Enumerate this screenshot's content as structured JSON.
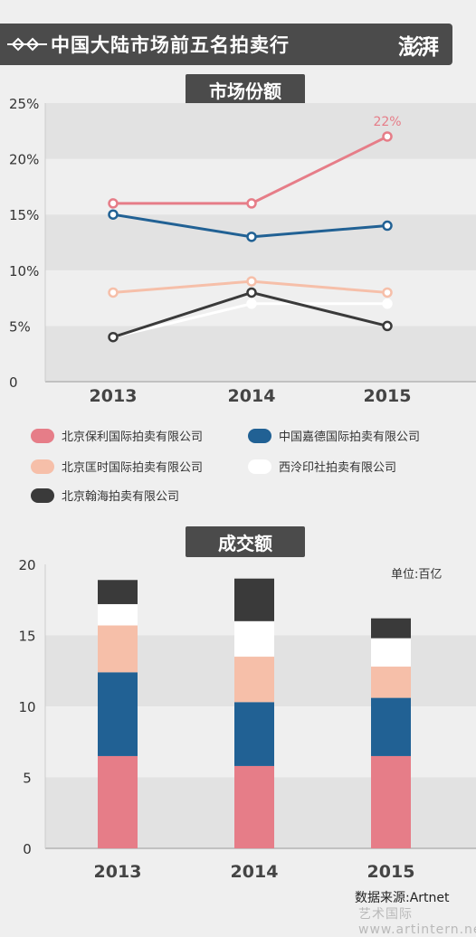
{
  "header": {
    "title": "中国大陆市场前五名拍卖行",
    "logo_text": "澎湃"
  },
  "sections": {
    "share_title": "市场份额",
    "turnover_title": "成交额"
  },
  "unit_label": "单位:百亿",
  "source_label": "数据来源:Artnet",
  "watermark_text": "艺术国际 www.artintern.net",
  "colors": {
    "poly": "#e67d88",
    "guardian": "#216194",
    "kuangshi": "#f6bfa9",
    "xiling": "#ffffff",
    "hanhai": "#3a3a3a",
    "background": "#efefef",
    "band": "#e2e2e2"
  },
  "legend": [
    {
      "label": "北京保利国际拍卖有限公司",
      "color": "#e67d88",
      "icon": "pill-swatch"
    },
    {
      "label": "中国嘉德国际拍卖有限公司",
      "color": "#216194",
      "icon": "pill-swatch"
    },
    {
      "label": "北京匡时国际拍卖有限公司",
      "color": "#f6bfa9",
      "icon": "pill-swatch"
    },
    {
      "label": "西泠印社拍卖有限公司",
      "color": "#ffffff",
      "icon": "pill-swatch"
    },
    {
      "label": "北京翰海拍卖有限公司",
      "color": "#3a3a3a",
      "icon": "pill-swatch"
    }
  ],
  "chart_data": [
    {
      "type": "line",
      "title": "市场份额",
      "x": [
        "2013",
        "2014",
        "2015"
      ],
      "ylim": [
        0,
        25
      ],
      "yticks": [
        "0",
        "5%",
        "10%",
        "15%",
        "20%",
        "25%"
      ],
      "grid": "alternating horizontal bands",
      "series": [
        {
          "name": "北京保利国际拍卖有限公司",
          "color": "#e67d88",
          "values": [
            16,
            16,
            22
          ]
        },
        {
          "name": "中国嘉德国际拍卖有限公司",
          "color": "#216194",
          "values": [
            15,
            13,
            14
          ]
        },
        {
          "name": "北京匡时国际拍卖有限公司",
          "color": "#f6bfa9",
          "values": [
            8,
            9,
            8
          ]
        },
        {
          "name": "西泠印社拍卖有限公司",
          "color": "#ffffff",
          "values": [
            4,
            7,
            7
          ]
        },
        {
          "name": "北京翰海拍卖有限公司",
          "color": "#3a3a3a",
          "values": [
            4,
            8,
            5
          ]
        }
      ],
      "annotations": [
        {
          "series": 0,
          "index": 2,
          "text": "22%"
        }
      ]
    },
    {
      "type": "bar",
      "stacked": true,
      "title": "成交额",
      "categories": [
        "2013",
        "2014",
        "2015"
      ],
      "ylim": [
        0,
        20
      ],
      "yticks": [
        "0",
        "5",
        "10",
        "15",
        "20"
      ],
      "grid": "alternating horizontal bands",
      "series": [
        {
          "name": "北京保利国际拍卖有限公司",
          "color": "#e67d88",
          "values": [
            6.5,
            5.8,
            6.5
          ]
        },
        {
          "name": "中国嘉德国际拍卖有限公司",
          "color": "#216194",
          "values": [
            5.9,
            4.5,
            4.1
          ]
        },
        {
          "name": "北京匡时国际拍卖有限公司",
          "color": "#f6bfa9",
          "values": [
            3.3,
            3.2,
            2.2
          ]
        },
        {
          "name": "西泠印社拍卖有限公司",
          "color": "#ffffff",
          "values": [
            1.5,
            2.5,
            2.0
          ]
        },
        {
          "name": "北京翰海拍卖有限公司",
          "color": "#3a3a3a",
          "values": [
            1.7,
            3.0,
            1.4
          ]
        }
      ]
    }
  ]
}
